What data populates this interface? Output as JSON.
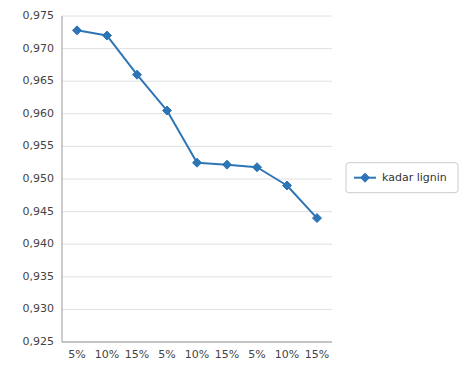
{
  "chart_data": {
    "type": "line",
    "categories": [
      "5%",
      "10%",
      "15%",
      "5%",
      "10%",
      "15%",
      "5%",
      "10%",
      "15%"
    ],
    "series": [
      {
        "name": "kadar lignin",
        "color": "#2E75B6",
        "marker": "diamond",
        "values": [
          0.9728,
          0.972,
          0.966,
          0.9605,
          0.9525,
          0.9522,
          0.9518,
          0.949,
          0.944
        ]
      }
    ],
    "ylim": [
      0.925,
      0.975
    ],
    "yticks": [
      {
        "value": 0.925,
        "label": "0,925"
      },
      {
        "value": 0.93,
        "label": "0,930"
      },
      {
        "value": 0.935,
        "label": "0,935"
      },
      {
        "value": 0.94,
        "label": "0,940"
      },
      {
        "value": 0.945,
        "label": "0,945"
      },
      {
        "value": 0.95,
        "label": "0,950"
      },
      {
        "value": 0.955,
        "label": "0,955"
      },
      {
        "value": 0.96,
        "label": "0,960"
      },
      {
        "value": 0.965,
        "label": "0,965"
      },
      {
        "value": 0.97,
        "label": "0,970"
      },
      {
        "value": 0.975,
        "label": "0,975"
      }
    ],
    "grid": true,
    "legend": "right"
  }
}
